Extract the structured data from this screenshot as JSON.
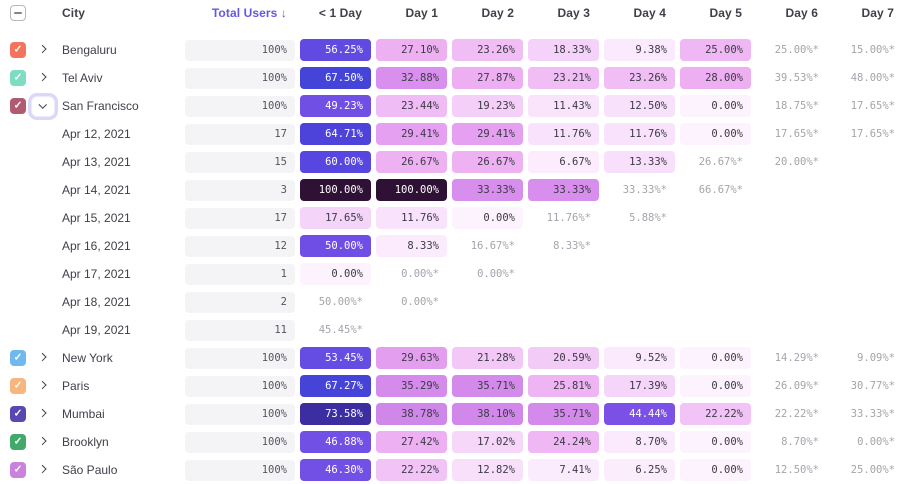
{
  "header": {
    "select_all": "indeterminate",
    "city_label": "City",
    "total_users_label": "Total Users ↓",
    "day_columns": [
      "< 1 Day",
      "Day 1",
      "Day 2",
      "Day 3",
      "Day 4",
      "Day 5",
      "Day 6",
      "Day 7"
    ]
  },
  "colors": {
    "accent-sort": "#6158e6",
    "header-text": "#40404a",
    "cell-text": "#3b3b44",
    "estimate-text": "#a4a4ac",
    "total-bg": "#f4f4f6",
    "total-text": "#55555e",
    "checkbox-border": "#b6b6bf",
    "ring": "#dcd6f8"
  },
  "heatmap": {
    "white_text_min": 44,
    "stops": [
      [
        0,
        "#fdf3fe"
      ],
      [
        9,
        "#fbeafd"
      ],
      [
        13,
        "#f8e0fb"
      ],
      [
        18,
        "#f5d3f9"
      ],
      [
        21,
        "#f3caf7"
      ],
      [
        24,
        "#efb9f4"
      ],
      [
        28,
        "#edaff2"
      ],
      [
        30,
        "#e29af0"
      ],
      [
        33,
        "#d98fed"
      ],
      [
        36,
        "#d38aeb"
      ],
      [
        43.99,
        "#cb81e9"
      ],
      [
        44,
        "#7b50e7"
      ],
      [
        47,
        "#7150e5"
      ],
      [
        50,
        "#6e4ee4"
      ],
      [
        54,
        "#644ce2"
      ],
      [
        57,
        "#5e49e0"
      ],
      [
        61,
        "#5545de"
      ],
      [
        65,
        "#4c43da"
      ],
      [
        68,
        "#4444d7"
      ],
      [
        74,
        "#3b2b9d"
      ],
      [
        85,
        "#33175c"
      ],
      [
        100,
        "#2e1134"
      ]
    ]
  },
  "rows": [
    {
      "level": "city",
      "label": "Bengaluru",
      "checkbox": "#f4735c",
      "expander": "collapsed",
      "total": "100%",
      "values": [
        "56.25%",
        "27.10%",
        "23.26%",
        "18.33%",
        "9.38%",
        "25.00%",
        "25.00%*",
        "15.00%*"
      ]
    },
    {
      "level": "city",
      "label": "Tel Aviv",
      "checkbox": "#7edcc2",
      "expander": "collapsed",
      "total": "100%",
      "values": [
        "67.50%",
        "32.88%",
        "27.87%",
        "23.21%",
        "23.26%",
        "28.00%",
        "39.53%*",
        "48.00%*"
      ]
    },
    {
      "level": "city",
      "label": "San Francisco",
      "checkbox": "#b15b73",
      "expander": "expanded",
      "total": "100%",
      "values": [
        "49.23%",
        "23.44%",
        "19.23%",
        "11.43%",
        "12.50%",
        "0.00%",
        "18.75%*",
        "17.65%*"
      ]
    },
    {
      "level": "date",
      "label": "Apr 12, 2021",
      "checkbox": null,
      "expander": null,
      "total": "17",
      "values": [
        "64.71%",
        "29.41%",
        "29.41%",
        "11.76%",
        "11.76%",
        "0.00%",
        "17.65%*",
        "17.65%*"
      ]
    },
    {
      "level": "date",
      "label": "Apr 13, 2021",
      "checkbox": null,
      "expander": null,
      "total": "15",
      "values": [
        "60.00%",
        "26.67%",
        "26.67%",
        "6.67%",
        "13.33%",
        "26.67%*",
        "20.00%*",
        ""
      ]
    },
    {
      "level": "date",
      "label": "Apr 14, 2021",
      "checkbox": null,
      "expander": null,
      "total": "3",
      "values": [
        "100.00%",
        "100.00%",
        "33.33%",
        "33.33%",
        "33.33%*",
        "66.67%*",
        "",
        ""
      ]
    },
    {
      "level": "date",
      "label": "Apr 15, 2021",
      "checkbox": null,
      "expander": null,
      "total": "17",
      "values": [
        "17.65%",
        "11.76%",
        "0.00%",
        "11.76%*",
        "5.88%*",
        "",
        "",
        ""
      ]
    },
    {
      "level": "date",
      "label": "Apr 16, 2021",
      "checkbox": null,
      "expander": null,
      "total": "12",
      "values": [
        "50.00%",
        "8.33%",
        "16.67%*",
        "8.33%*",
        "",
        "",
        "",
        ""
      ]
    },
    {
      "level": "date",
      "label": "Apr 17, 2021",
      "checkbox": null,
      "expander": null,
      "total": "1",
      "values": [
        "0.00%",
        "0.00%*",
        "0.00%*",
        "",
        "",
        "",
        "",
        ""
      ]
    },
    {
      "level": "date",
      "label": "Apr 18, 2021",
      "checkbox": null,
      "expander": null,
      "total": "2",
      "values": [
        "50.00%*",
        "0.00%*",
        "",
        "",
        "",
        "",
        "",
        ""
      ]
    },
    {
      "level": "date",
      "label": "Apr 19, 2021",
      "checkbox": null,
      "expander": null,
      "total": "11",
      "values": [
        "45.45%*",
        "",
        "",
        "",
        "",
        "",
        "",
        ""
      ]
    },
    {
      "level": "city",
      "label": "New York",
      "checkbox": "#6fb9ef",
      "expander": "collapsed",
      "total": "100%",
      "values": [
        "53.45%",
        "29.63%",
        "21.28%",
        "20.59%",
        "9.52%",
        "0.00%",
        "14.29%*",
        "9.09%*"
      ]
    },
    {
      "level": "city",
      "label": "Paris",
      "checkbox": "#f9b57e",
      "expander": "collapsed",
      "total": "100%",
      "values": [
        "67.27%",
        "35.29%",
        "35.71%",
        "25.81%",
        "17.39%",
        "0.00%",
        "26.09%*",
        "30.77%*"
      ]
    },
    {
      "level": "city",
      "label": "Mumbai",
      "checkbox": "#5849b0",
      "expander": "collapsed",
      "total": "100%",
      "values": [
        "73.58%",
        "38.78%",
        "38.10%",
        "35.71%",
        "44.44%",
        "22.22%",
        "22.22%*",
        "33.33%*"
      ]
    },
    {
      "level": "city",
      "label": "Brooklyn",
      "checkbox": "#43a96b",
      "expander": "collapsed",
      "total": "100%",
      "values": [
        "46.88%",
        "27.42%",
        "17.02%",
        "24.24%",
        "8.70%",
        "0.00%",
        "8.70%*",
        "0.00%*"
      ]
    },
    {
      "level": "city",
      "label": "São Paulo",
      "checkbox": "#c983dc",
      "expander": "collapsed",
      "total": "100%",
      "values": [
        "46.30%",
        "22.22%",
        "12.82%",
        "7.41%",
        "6.25%",
        "0.00%",
        "12.50%*",
        "25.00%*"
      ]
    }
  ]
}
